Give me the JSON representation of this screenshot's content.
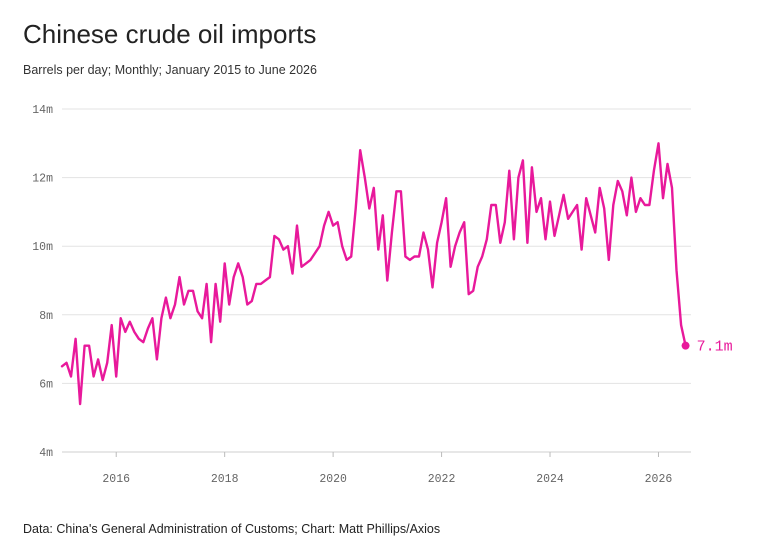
{
  "chart_data": {
    "type": "line",
    "title": "Chinese crude oil imports",
    "subtitle": "Barrels per day; Monthly; January 2015 to June 2026",
    "source": "Data: China's General Administration of Customs; Chart: Matt Phillips/Axios",
    "ylabel": "",
    "xlabel": "",
    "x_start": "2015-01",
    "x_end": "2026-06",
    "xlim": [
      2015.0,
      2026.6
    ],
    "ylim": [
      4,
      14
    ],
    "y_ticks": [
      {
        "value": 4,
        "label": "4m"
      },
      {
        "value": 6,
        "label": "6m"
      },
      {
        "value": 8,
        "label": "8m"
      },
      {
        "value": 10,
        "label": "10m"
      },
      {
        "value": 12,
        "label": "12m"
      },
      {
        "value": 14,
        "label": "14m"
      }
    ],
    "x_ticks": [
      {
        "value": 2016,
        "label": "2016"
      },
      {
        "value": 2018,
        "label": "2018"
      },
      {
        "value": 2020,
        "label": "2020"
      },
      {
        "value": 2022,
        "label": "2022"
      },
      {
        "value": 2024,
        "label": "2024"
      },
      {
        "value": 2026,
        "label": "2026"
      }
    ],
    "grid": true,
    "series": [
      {
        "color": "#e8199b",
        "values": [
          6.5,
          6.6,
          6.2,
          7.3,
          5.4,
          7.1,
          7.1,
          6.2,
          6.7,
          6.1,
          6.6,
          7.7,
          6.2,
          7.9,
          7.5,
          7.8,
          7.5,
          7.3,
          7.2,
          7.6,
          7.9,
          6.7,
          7.9,
          8.5,
          7.9,
          8.3,
          9.1,
          8.3,
          8.7,
          8.7,
          8.1,
          7.9,
          8.9,
          7.2,
          8.9,
          7.8,
          9.5,
          8.3,
          9.1,
          9.5,
          9.1,
          8.3,
          8.4,
          8.9,
          8.9,
          9.0,
          9.1,
          10.3,
          10.2,
          9.9,
          10.0,
          9.2,
          10.6,
          9.4,
          9.5,
          9.6,
          9.8,
          10.0,
          10.6,
          11.0,
          10.6,
          10.7,
          10.0,
          9.6,
          9.7,
          11.1,
          12.8,
          12.0,
          11.1,
          11.7,
          9.9,
          10.9,
          9.0,
          10.4,
          11.6,
          11.6,
          9.7,
          9.6,
          9.7,
          9.7,
          10.4,
          9.9,
          8.8,
          10.1,
          10.7,
          11.4,
          9.4,
          10.0,
          10.4,
          10.7,
          8.6,
          8.7,
          9.4,
          9.7,
          10.2,
          11.2,
          11.2,
          10.1,
          10.7,
          12.2,
          10.2,
          12.0,
          12.5,
          10.1,
          12.3,
          11.0,
          11.4,
          10.2,
          11.3,
          10.3,
          10.9,
          11.5,
          10.8,
          11.0,
          11.2,
          9.9,
          11.4,
          10.9,
          10.4,
          11.7,
          11.1,
          9.6,
          11.2,
          11.9,
          11.6,
          10.9,
          12.0,
          11.0,
          11.4,
          11.2,
          11.2,
          12.2,
          13.0,
          11.4,
          12.4,
          11.7,
          9.3,
          7.7,
          7.1
        ]
      }
    ],
    "end_label": {
      "value": 7.1,
      "text": "7.1m"
    }
  }
}
